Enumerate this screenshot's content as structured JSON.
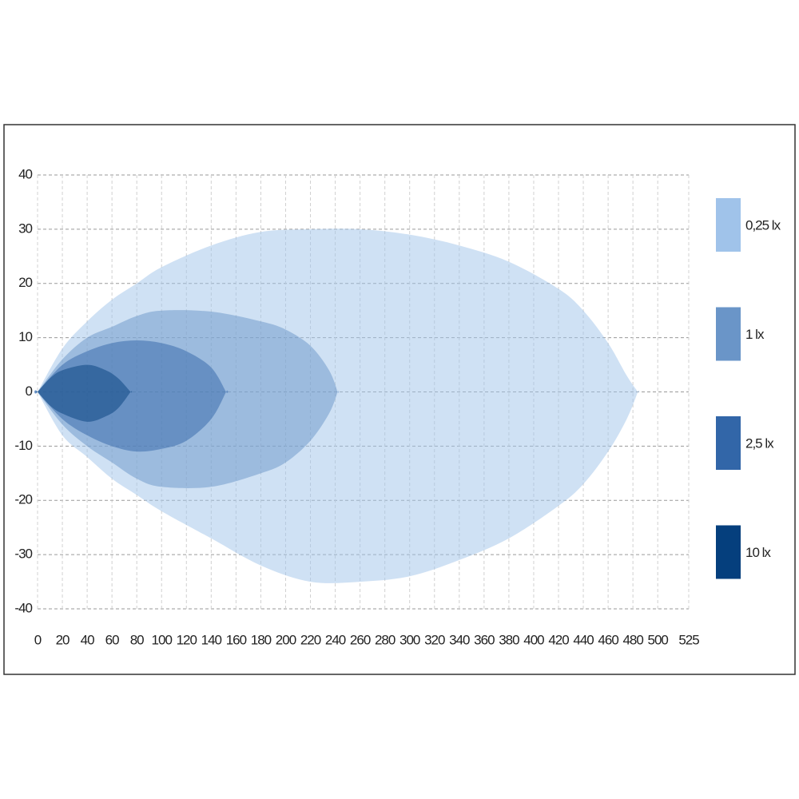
{
  "chart_data": {
    "type": "isolux",
    "xlim": [
      0,
      525
    ],
    "xticks": [
      0,
      20,
      40,
      60,
      80,
      100,
      120,
      140,
      160,
      180,
      200,
      220,
      240,
      260,
      280,
      300,
      320,
      340,
      360,
      380,
      400,
      420,
      440,
      460,
      480,
      500,
      525
    ],
    "ylim": [
      -40,
      40
    ],
    "yticks": [
      -40,
      -30,
      -20,
      -10,
      0,
      10,
      20,
      30,
      40
    ],
    "grid": true,
    "legend": "right",
    "series": [
      {
        "name": "0,25 lx",
        "color": "#a0c3ea",
        "x": [
          0,
          20,
          40,
          60,
          80,
          100,
          140,
          180,
          220,
          260,
          300,
          340,
          380,
          420,
          440,
          460,
          475,
          484
        ],
        "y_upper": [
          0,
          8,
          13,
          17,
          20,
          23,
          27,
          29.5,
          30,
          30,
          29,
          27,
          24,
          19,
          15,
          9,
          3,
          0
        ],
        "y_lower": [
          0,
          -8,
          -12,
          -16,
          -19,
          -22,
          -27,
          -32,
          -35,
          -35,
          -34,
          -31,
          -27,
          -21,
          -17,
          -11,
          -5,
          0
        ]
      },
      {
        "name": "1 lx",
        "color": "#6a95c8",
        "x": [
          0,
          20,
          40,
          60,
          80,
          100,
          140,
          180,
          200,
          220,
          235,
          242
        ],
        "y_upper": [
          0,
          6,
          10,
          12,
          14,
          15,
          14.8,
          13,
          11.5,
          8.5,
          4,
          0
        ],
        "y_lower": [
          0,
          -6,
          -10,
          -13,
          -16,
          -17.5,
          -17.5,
          -15,
          -13,
          -9,
          -4,
          0
        ]
      },
      {
        "name": "2,5 lx",
        "color": "#3266a8",
        "x": [
          0,
          20,
          40,
          60,
          80,
          100,
          120,
          140,
          152
        ],
        "y_upper": [
          0,
          5,
          7.5,
          9,
          9.5,
          9,
          7.5,
          4.5,
          0
        ],
        "y_lower": [
          0,
          -5,
          -8,
          -10,
          -11,
          -10.5,
          -9,
          -5,
          0
        ]
      },
      {
        "name": "10 lx",
        "color": "#053f7d",
        "x": [
          0,
          10,
          20,
          40,
          55,
          65,
          75
        ],
        "y_upper": [
          0,
          2.5,
          4,
          5,
          4,
          2.5,
          0
        ],
        "y_lower": [
          0,
          -2.5,
          -4,
          -5.5,
          -4.5,
          -3,
          0
        ]
      }
    ]
  }
}
